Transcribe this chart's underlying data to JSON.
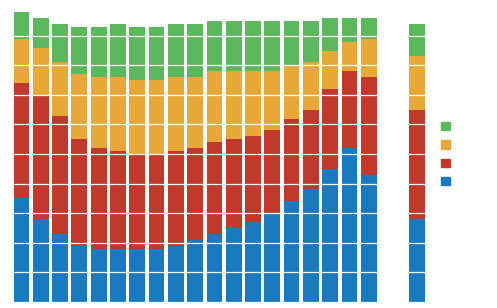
{
  "blue": [
    35,
    28,
    23,
    19,
    18,
    18,
    18,
    18,
    19,
    21,
    23,
    25,
    27,
    30,
    34,
    38,
    45,
    52,
    43,
    28
  ],
  "red": [
    39,
    42,
    40,
    36,
    34,
    33,
    32,
    32,
    32,
    31,
    31,
    30,
    29,
    28,
    28,
    27,
    27,
    26,
    33,
    37
  ],
  "yellow": [
    15,
    16,
    18,
    22,
    24,
    25,
    25,
    25,
    25,
    24,
    24,
    23,
    22,
    20,
    18,
    16,
    13,
    10,
    13,
    18
  ],
  "green": [
    9,
    10,
    13,
    16,
    17,
    18,
    18,
    18,
    18,
    18,
    17,
    17,
    17,
    17,
    15,
    14,
    11,
    8,
    7,
    11
  ],
  "col_blue": "#1a7abf",
  "col_red": "#c0392b",
  "col_yellow": "#e8a838",
  "col_green": "#5cb85c",
  "n_main": 18,
  "ylim": [
    0,
    100
  ],
  "bar_width": 0.82
}
